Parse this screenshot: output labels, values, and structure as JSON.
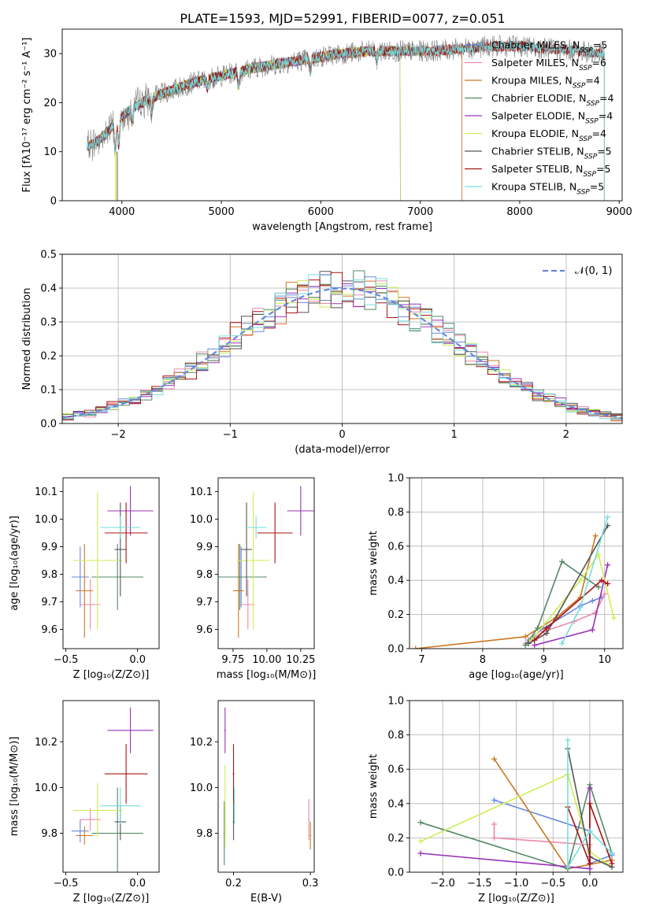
{
  "title": "PLATE=1593, MJD=52991, FIBERID=0077, z=0.051",
  "colors": [
    "#6688dd",
    "#ee88aa",
    "#cc7722",
    "#558866",
    "#9933bb",
    "#ccee55",
    "#555555",
    "#aa1111",
    "#77dddd"
  ],
  "chart_data": [
    {
      "id": "spectrum",
      "type": "line",
      "xlabel": "wavelength [Angstrom, rest frame]",
      "ylabel": "Flux [fλ10⁻¹⁷ erg cm⁻² s⁻¹ A⁻¹]",
      "xlim": [
        3400,
        9030
      ],
      "ylim": [
        0,
        35
      ],
      "xticks": [
        4000,
        5000,
        6000,
        7000,
        8000,
        9000
      ],
      "yticks": [
        0,
        10,
        20,
        30
      ],
      "observed_color": "#808080",
      "continuum": {
        "x": [
          3650,
          3750,
          3850,
          3950,
          4100,
          4300,
          4500,
          4700,
          5000,
          5300,
          5600,
          5900,
          6200,
          6500,
          6800,
          7100,
          7400,
          7700,
          8000,
          8300,
          8600,
          8800
        ],
        "y": [
          11,
          12,
          14,
          16,
          19,
          21,
          22.5,
          24,
          25.5,
          27,
          28,
          29,
          30,
          30.5,
          30.5,
          30.5,
          31,
          31.5,
          31.5,
          31,
          30.5,
          30
        ]
      },
      "series": [
        {
          "name": "Chabrier MILES, NSSP=5",
          "color": "#6688dd",
          "xmax": 7420
        },
        {
          "name": "Salpeter MILES, NSSP=6",
          "color": "#ee88aa",
          "xmax": 7420
        },
        {
          "name": "Kroupa MILES, NSSP=4",
          "color": "#cc7722",
          "xmax": 7420
        },
        {
          "name": "Chabrier ELODIE, NSSP=4",
          "color": "#558866",
          "xmax": 6800
        },
        {
          "name": "Salpeter ELODIE, NSSP=4",
          "color": "#9933bb",
          "xmax": 6800
        },
        {
          "name": "Kroupa ELODIE, NSSP=4",
          "color": "#ccee55",
          "xmax": 6800
        },
        {
          "name": "Chabrier STELIB, NSSP=5",
          "color": "#555555",
          "xmax": 8850
        },
        {
          "name": "Salpeter STELIB, NSSP=5",
          "color": "#aa1111",
          "xmax": 8850
        },
        {
          "name": "Kroupa STELIB, NSSP=5",
          "color": "#77dddd",
          "xmax": 8850
        }
      ],
      "legend_position": "right"
    },
    {
      "id": "residuals",
      "type": "histogram",
      "xlabel": "(data-model)/error",
      "ylabel": "Normed distribution",
      "xlim": [
        -2.5,
        2.5
      ],
      "ylim": [
        0,
        0.5
      ],
      "xticks": [
        -2,
        -1,
        0,
        1,
        2
      ],
      "yticks": [
        0.0,
        0.1,
        0.2,
        0.3,
        0.4,
        0.5
      ],
      "grid": true,
      "bin_width": 0.1,
      "legend": "𝒩(0, 1)",
      "legend_position": "top-right",
      "gaussian": {
        "mu": 0,
        "sigma": 1,
        "color": "#6688dd"
      }
    },
    {
      "id": "age_vs_Z",
      "type": "errorbar",
      "xlabel": "Z [log₁₀(Z/Z⊙)]",
      "ylabel": "age  [log₁₀(age/yr)]",
      "xlim": [
        -0.52,
        0.15
      ],
      "ylim": [
        9.53,
        10.15
      ],
      "xticks": [
        -0.5,
        0.0
      ],
      "yticks": [
        9.6,
        9.7,
        9.8,
        9.9,
        10.0,
        10.1
      ],
      "points": [
        {
          "x": -0.4,
          "y": 9.79,
          "xerr": 0.06,
          "yerr": 0.11,
          "color": "#6688dd"
        },
        {
          "x": -0.33,
          "y": 9.69,
          "xerr": 0.07,
          "yerr": 0.09,
          "color": "#ee88aa"
        },
        {
          "x": -0.37,
          "y": 9.74,
          "xerr": 0.06,
          "yerr": 0.17,
          "color": "#cc7722"
        },
        {
          "x": -0.14,
          "y": 9.79,
          "xerr": 0.18,
          "yerr": 0.12,
          "color": "#558866"
        },
        {
          "x": -0.05,
          "y": 10.03,
          "xerr": 0.16,
          "yerr": 0.09,
          "color": "#9933bb"
        },
        {
          "x": -0.28,
          "y": 9.85,
          "xerr": 0.17,
          "yerr": 0.25,
          "color": "#ccee55"
        },
        {
          "x": -0.12,
          "y": 9.89,
          "xerr": 0.04,
          "yerr": 0.17,
          "color": "#555555"
        },
        {
          "x": -0.08,
          "y": 9.95,
          "xerr": 0.15,
          "yerr": 0.11,
          "color": "#aa1111"
        },
        {
          "x": -0.12,
          "y": 9.97,
          "xerr": 0.14,
          "yerr": 0.04,
          "color": "#77dddd"
        }
      ]
    },
    {
      "id": "age_vs_mass",
      "type": "errorbar",
      "xlabel": "mass [log₁₀(M/M⊙)]",
      "ylabel": "",
      "xlim": [
        9.64,
        10.35
      ],
      "ylim": [
        9.53,
        10.15
      ],
      "xticks": [
        9.75,
        10.0,
        10.25
      ],
      "xticklabels": [
        "9.75",
        "10.00",
        "10.25"
      ],
      "yticks": [
        9.6,
        9.7,
        9.8,
        9.9,
        10.0,
        10.1
      ],
      "points": [
        {
          "x": 9.81,
          "y": 9.79,
          "xerr": 0.05,
          "yerr": 0.11,
          "color": "#6688dd"
        },
        {
          "x": 9.86,
          "y": 9.69,
          "xerr": 0.05,
          "yerr": 0.09,
          "color": "#ee88aa"
        },
        {
          "x": 9.79,
          "y": 9.74,
          "xerr": 0.04,
          "yerr": 0.17,
          "color": "#cc7722"
        },
        {
          "x": 9.8,
          "y": 9.79,
          "xerr": 0.2,
          "yerr": 0.12,
          "color": "#558866"
        },
        {
          "x": 10.25,
          "y": 10.03,
          "xerr": 0.1,
          "yerr": 0.09,
          "color": "#9933bb"
        },
        {
          "x": 9.9,
          "y": 9.85,
          "xerr": 0.12,
          "yerr": 0.25,
          "color": "#ccee55"
        },
        {
          "x": 9.85,
          "y": 9.89,
          "xerr": 0.04,
          "yerr": 0.17,
          "color": "#555555"
        },
        {
          "x": 10.06,
          "y": 9.95,
          "xerr": 0.13,
          "yerr": 0.11,
          "color": "#aa1111"
        },
        {
          "x": 9.92,
          "y": 9.97,
          "xerr": 0.08,
          "yerr": 0.04,
          "color": "#77dddd"
        }
      ]
    },
    {
      "id": "massweight_vs_age",
      "type": "line",
      "xlabel": "age  [log₁₀(age/yr)]",
      "ylabel": "mass weight",
      "xlim": [
        6.8,
        10.3
      ],
      "ylim": [
        0,
        1.0
      ],
      "xticks": [
        7,
        8,
        9,
        10
      ],
      "yticks": [
        0.0,
        0.2,
        0.4,
        0.6,
        0.8,
        1.0
      ],
      "grid": true,
      "series": [
        {
          "color": "#6688dd",
          "x": [
            8.75,
            9.0,
            9.6,
            9.8,
            9.95
          ],
          "y": [
            0.05,
            0.12,
            0.25,
            0.28,
            0.3
          ]
        },
        {
          "color": "#ee88aa",
          "x": [
            8.7,
            9.0,
            9.5,
            9.85,
            10.0
          ],
          "y": [
            0.03,
            0.1,
            0.16,
            0.21,
            0.32
          ]
        },
        {
          "color": "#cc7722",
          "x": [
            6.9,
            8.7,
            9.2,
            9.6,
            9.85
          ],
          "y": [
            0.0,
            0.07,
            0.18,
            0.3,
            0.66
          ]
        },
        {
          "color": "#558866",
          "x": [
            8.7,
            8.9,
            9.3,
            9.9
          ],
          "y": [
            0.02,
            0.12,
            0.51,
            0.36
          ]
        },
        {
          "color": "#9933bb",
          "x": [
            8.85,
            9.8,
            10.05
          ],
          "y": [
            0.02,
            0.11,
            0.49
          ]
        },
        {
          "color": "#ccee55",
          "x": [
            8.8,
            9.6,
            9.9,
            10.15
          ],
          "y": [
            0.05,
            0.4,
            0.55,
            0.18
          ]
        },
        {
          "color": "#555555",
          "x": [
            8.75,
            9.05,
            10.05
          ],
          "y": [
            0.03,
            0.09,
            0.72
          ]
        },
        {
          "color": "#aa1111",
          "x": [
            8.85,
            9.05,
            9.95,
            10.05
          ],
          "y": [
            0.05,
            0.12,
            0.4,
            0.38
          ]
        },
        {
          "color": "#77dddd",
          "x": [
            9.3,
            9.6,
            10.05
          ],
          "y": [
            0.03,
            0.24,
            0.77
          ]
        }
      ]
    },
    {
      "id": "mass_vs_Z",
      "type": "errorbar",
      "xlabel": "Z [log₁₀(Z/Z⊙)]",
      "ylabel": "mass [log₁₀(M/M⊙)]",
      "xlim": [
        -0.52,
        0.15
      ],
      "ylim": [
        9.63,
        10.38
      ],
      "xticks": [
        -0.5,
        0.0
      ],
      "yticks": [
        9.8,
        10.0,
        10.2
      ],
      "points": [
        {
          "x": -0.4,
          "y": 9.81,
          "xerr": 0.06,
          "yerr": 0.05,
          "color": "#6688dd"
        },
        {
          "x": -0.33,
          "y": 9.86,
          "xerr": 0.07,
          "yerr": 0.05,
          "color": "#ee88aa"
        },
        {
          "x": -0.37,
          "y": 9.79,
          "xerr": 0.06,
          "yerr": 0.04,
          "color": "#cc7722"
        },
        {
          "x": -0.14,
          "y": 9.8,
          "xerr": 0.18,
          "yerr": 0.2,
          "color": "#558866"
        },
        {
          "x": -0.05,
          "y": 10.25,
          "xerr": 0.16,
          "yerr": 0.1,
          "color": "#9933bb"
        },
        {
          "x": -0.28,
          "y": 9.9,
          "xerr": 0.17,
          "yerr": 0.12,
          "color": "#ccee55"
        },
        {
          "x": -0.12,
          "y": 9.85,
          "xerr": 0.04,
          "yerr": 0.08,
          "color": "#555555"
        },
        {
          "x": -0.08,
          "y": 10.06,
          "xerr": 0.15,
          "yerr": 0.13,
          "color": "#aa1111"
        },
        {
          "x": -0.12,
          "y": 9.92,
          "xerr": 0.14,
          "yerr": 0.08,
          "color": "#77dddd"
        }
      ]
    },
    {
      "id": "mass_vs_ebv",
      "type": "errorbar",
      "xlabel": "E(B-V)",
      "ylabel": "",
      "xlim": [
        0.18,
        0.305
      ],
      "ylim": [
        9.63,
        10.38
      ],
      "xticks": [
        0.2,
        0.3
      ],
      "yticks": [
        9.8,
        10.0,
        10.2
      ],
      "points": [
        {
          "x": 0.298,
          "y": 9.86,
          "xerr": 0.001,
          "yerr": 0.09,
          "color": "#ee88aa"
        },
        {
          "x": 0.3,
          "y": 9.79,
          "xerr": 0.001,
          "yerr": 0.06,
          "color": "#cc7722"
        },
        {
          "x": 0.188,
          "y": 9.8,
          "xerr": 0.001,
          "yerr": 0.14,
          "color": "#558866"
        },
        {
          "x": 0.189,
          "y": 10.25,
          "xerr": 0.001,
          "yerr": 0.1,
          "color": "#9933bb"
        },
        {
          "x": 0.189,
          "y": 9.92,
          "xerr": 0.001,
          "yerr": 0.18,
          "color": "#ccee55"
        },
        {
          "x": 0.2,
          "y": 9.85,
          "xerr": 0.001,
          "yerr": 0.08,
          "color": "#555555"
        },
        {
          "x": 0.2,
          "y": 10.06,
          "xerr": 0.001,
          "yerr": 0.13,
          "color": "#aa1111"
        },
        {
          "x": 0.201,
          "y": 9.92,
          "xerr": 0.001,
          "yerr": 0.08,
          "color": "#77dddd"
        }
      ]
    },
    {
      "id": "massweight_vs_Z",
      "type": "line",
      "xlabel": "Z [log₁₀(Z/Z⊙)]",
      "ylabel": "mass weight",
      "xlim": [
        -2.45,
        0.45
      ],
      "ylim": [
        0,
        1.0
      ],
      "xticks": [
        -2.0,
        -1.5,
        -1.0,
        -0.5,
        0.0
      ],
      "xticklabels": [
        "−2.0",
        "−1.5",
        "−1.0",
        "−0.5",
        "0.0"
      ],
      "yticks": [
        0.0,
        0.2,
        0.4,
        0.6,
        0.8,
        1.0
      ],
      "grid": true,
      "series": [
        {
          "color": "#6688dd",
          "x": [
            -1.3,
            0.0,
            0.0,
            0.3
          ],
          "y": [
            0.42,
            0.24,
            0.05,
            0.1
          ]
        },
        {
          "color": "#ee88aa",
          "x": [
            -1.3,
            -1.3,
            0.0,
            0.0
          ],
          "y": [
            0.28,
            0.2,
            0.16,
            0.02
          ]
        },
        {
          "color": "#cc7722",
          "x": [
            -1.3,
            -0.3,
            0.3
          ],
          "y": [
            0.66,
            0.02,
            0.07
          ]
        },
        {
          "color": "#558866",
          "x": [
            -2.3,
            -0.3,
            0.0,
            0.3
          ],
          "y": [
            0.29,
            0.02,
            0.51,
            0.11
          ]
        },
        {
          "color": "#9933bb",
          "x": [
            -2.3,
            0.0,
            0.0
          ],
          "y": [
            0.11,
            0.02,
            0.49
          ]
        },
        {
          "color": "#ccee55",
          "x": [
            -2.3,
            -0.3,
            0.0,
            0.3
          ],
          "y": [
            0.18,
            0.57,
            0.12,
            0.03
          ]
        },
        {
          "color": "#555555",
          "x": [
            -0.3,
            0.0,
            0.3
          ],
          "y": [
            0.72,
            0.09,
            0.03
          ]
        },
        {
          "color": "#aa1111",
          "x": [
            -0.3,
            0.0,
            0.0,
            0.3
          ],
          "y": [
            0.38,
            0.05,
            0.4,
            0.05
          ]
        },
        {
          "color": "#77dddd",
          "x": [
            -0.3,
            -0.3,
            0.0,
            0.3
          ],
          "y": [
            0.77,
            0.03,
            0.24,
            0.11
          ]
        }
      ]
    }
  ]
}
